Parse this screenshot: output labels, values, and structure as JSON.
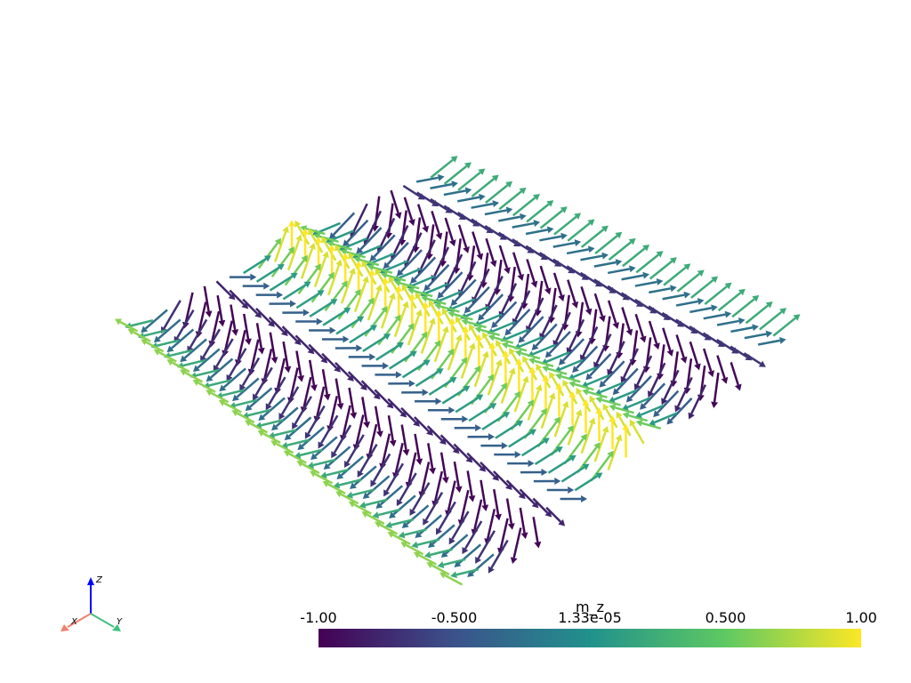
{
  "colorbar": {
    "title": "m_z",
    "range": [
      -1,
      1
    ],
    "ticks": [
      {
        "value": -1,
        "label": "-1.00"
      },
      {
        "value": -0.5,
        "label": "-0.500"
      },
      {
        "value": 1.33e-05,
        "label": "1.33e-05"
      },
      {
        "value": 0.5,
        "label": "0.500"
      },
      {
        "value": 1,
        "label": "1.00"
      }
    ]
  },
  "axes": {
    "x": "X",
    "y": "Y",
    "z": "Z"
  }
}
